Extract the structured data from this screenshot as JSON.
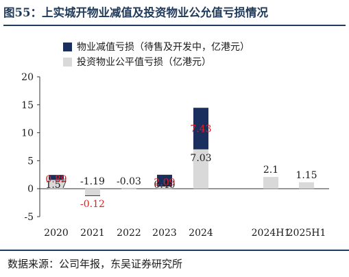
{
  "title": "图55：上实城开物业减值及投资物业公允值亏损情况",
  "source": "数据来源：公司年报，东吴证券研究所",
  "chart_data": {
    "type": "bar",
    "stacked": true,
    "categories": [
      "2020",
      "2021",
      "2022",
      "2023",
      "2024",
      "",
      "2024H1",
      "2025H1"
    ],
    "series": [
      {
        "name": "物业减值亏损（待售及开发中，亿港元）",
        "color": "#1b2f5e",
        "values": [
          0.89,
          -0.12,
          null,
          2.09,
          7.43,
          null,
          null,
          null
        ],
        "labels": [
          "0.89",
          "-0.12",
          "",
          "2.09",
          "7.43",
          "",
          "",
          ""
        ],
        "label_color": "#e02020"
      },
      {
        "name": "投资物业公平值亏损（亿港元）",
        "color": "#d9d9d9",
        "values": [
          1.57,
          -1.19,
          -0.03,
          0.4,
          7.03,
          null,
          2.1,
          1.15
        ],
        "labels": [
          "1.57",
          "-1.19",
          "-0.03",
          "0.40",
          "7.03",
          "",
          "2.1",
          "1.15"
        ],
        "label_color": "#1a1a1a"
      }
    ],
    "y_ticks": [
      "-5",
      "0",
      "5",
      "10",
      "15",
      "20"
    ],
    "ylim": [
      -5,
      20
    ],
    "legend_position": "top-left",
    "grid": false
  }
}
